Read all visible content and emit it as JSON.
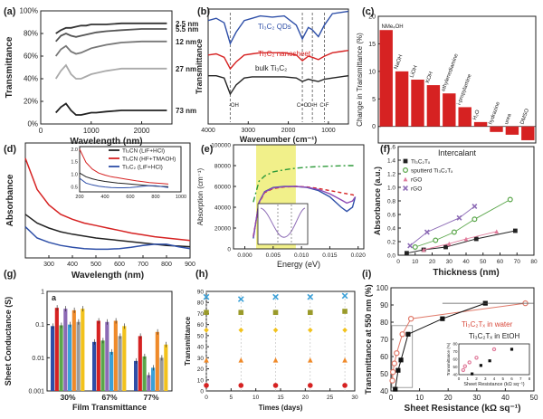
{
  "colors": {
    "black": "#1a1a1a",
    "red": "#d62222",
    "blue": "#2e4fa8",
    "green": "#5aa64a",
    "pink": "#e07a9a",
    "purple": "#8c6ab5",
    "orange": "#ef8a2a",
    "yellow": "#f2c21c",
    "sky": "#3aa0d8",
    "olive": "#9a9a2a",
    "highlight": "#f1f08a"
  },
  "panels": {
    "a": {
      "letter": "(a)"
    },
    "b": {
      "letter": "(b)"
    },
    "c": {
      "letter": "(c)"
    },
    "d": {
      "letter": "(d)"
    },
    "e": {
      "letter": "(e)"
    },
    "f": {
      "letter": "(f)"
    },
    "g": {
      "letter": "(g)",
      "inner": "a"
    },
    "h": {
      "letter": "(h)"
    },
    "i": {
      "letter": "(i)"
    }
  },
  "chart_data": [
    {
      "id": "a",
      "type": "line",
      "xlabel": "Wavelength (nm)",
      "ylabel": "Transmittance",
      "x_ticks": [
        "0",
        "1000",
        "2000"
      ],
      "y_ticks": [
        "0%",
        "20%",
        "40%",
        "60%",
        "80%",
        "100%"
      ],
      "xlim": [
        0,
        2600
      ],
      "ylim": [
        0,
        100
      ],
      "x": [
        300,
        400,
        500,
        600,
        700,
        800,
        900,
        1000,
        1100,
        1300,
        1600,
        2000,
        2500
      ],
      "series": [
        {
          "name": "2.5 nm",
          "color": "#333333",
          "values": [
            80,
            83,
            85,
            85,
            86,
            87,
            87,
            88,
            88,
            88,
            89,
            89,
            89
          ]
        },
        {
          "name": "5.5 nm",
          "color": "#555555",
          "values": [
            73,
            78,
            80,
            78,
            77,
            78,
            79,
            80,
            81,
            82,
            83,
            84,
            84
          ]
        },
        {
          "name": "12 nm",
          "color": "#777777",
          "values": [
            60,
            66,
            69,
            64,
            62,
            63,
            65,
            67,
            68,
            70,
            72,
            73,
            73
          ]
        },
        {
          "name": "27 nm",
          "color": "#aaaaaa",
          "values": [
            40,
            47,
            52,
            44,
            40,
            40,
            42,
            44,
            45,
            47,
            49,
            49,
            49
          ]
        },
        {
          "name": "73 nm",
          "color": "#222222",
          "values": [
            10,
            15,
            18,
            12,
            8,
            8,
            9,
            10,
            10,
            11,
            12,
            12,
            12
          ]
        }
      ]
    },
    {
      "id": "b",
      "type": "line",
      "xlabel": "Wavenumber (cm⁻¹)",
      "ylabel": "Transmittance",
      "x_ticks": [
        "4000",
        "3000",
        "2000",
        "1000"
      ],
      "xlim": [
        4000,
        500
      ],
      "ylim": [
        0,
        1
      ],
      "x": [
        4000,
        3800,
        3600,
        3450,
        3300,
        3100,
        2900,
        2700,
        2400,
        2100,
        1800,
        1650,
        1500,
        1400,
        1250,
        1100,
        900,
        700,
        500
      ],
      "annotations": [
        "-OH",
        "C=O",
        "O-H",
        "C-F"
      ],
      "series": [
        {
          "name": "Ti₃C₂ QDs",
          "color": "#2e4fa8",
          "values": [
            0.9,
            0.92,
            0.88,
            0.7,
            0.8,
            0.9,
            0.92,
            0.94,
            0.93,
            0.94,
            0.86,
            0.74,
            0.84,
            0.82,
            0.76,
            0.86,
            0.96,
            0.97,
            0.98
          ]
        },
        {
          "name": "Ti₃C₂ nanosheet",
          "color": "#d62222",
          "values": [
            0.6,
            0.61,
            0.58,
            0.48,
            0.54,
            0.6,
            0.61,
            0.62,
            0.62,
            0.62,
            0.6,
            0.55,
            0.59,
            0.58,
            0.56,
            0.59,
            0.62,
            0.63,
            0.64
          ]
        },
        {
          "name": "bulk Ti₃C₂",
          "color": "#222222",
          "values": [
            0.42,
            0.42,
            0.4,
            0.26,
            0.34,
            0.4,
            0.41,
            0.41,
            0.41,
            0.41,
            0.4,
            0.37,
            0.39,
            0.38,
            0.37,
            0.39,
            0.4,
            0.41,
            0.42
          ]
        }
      ]
    },
    {
      "id": "c",
      "type": "bar",
      "xlabel": "Intercalant",
      "ylabel": "Change in Transmittance (%)",
      "y_ticks": [
        "0",
        "5",
        "10",
        "15",
        "20"
      ],
      "ylim": [
        -3,
        20
      ],
      "categories": [
        "NMe₄OH",
        "NaOH",
        "LiOH",
        "KOH",
        "ethylenediamine",
        "i-propylamine",
        "H₂O",
        "hydrazine",
        "urea",
        "DMSO"
      ],
      "values": [
        17.5,
        10,
        8.5,
        7.5,
        6,
        3.5,
        0.8,
        -1,
        -1.5,
        -2.5
      ],
      "color": "#d62222"
    },
    {
      "id": "d",
      "type": "line",
      "xlabel": "Wavelength (nm)",
      "ylabel": "Absorbance",
      "x_ticks": [
        "300",
        "400",
        "500",
        "600",
        "700",
        "800",
        "900"
      ],
      "xlim": [
        200,
        900
      ],
      "x": [
        200,
        250,
        300,
        350,
        400,
        450,
        500,
        550,
        600,
        650,
        700,
        750,
        800,
        850,
        900
      ],
      "series": [
        {
          "name": "Ti₃CN (LiF+HCl)",
          "color": "#222222",
          "values": [
            1.0,
            0.86,
            0.78,
            0.72,
            0.68,
            0.65,
            0.62,
            0.6,
            0.58,
            0.56,
            0.54,
            0.52,
            0.5,
            0.49,
            0.48
          ]
        },
        {
          "name": "Ti₃CN (HF+TMAOH)",
          "color": "#d62222",
          "values": [
            1.9,
            1.4,
            1.15,
            1.0,
            0.92,
            0.86,
            0.82,
            0.78,
            0.74,
            0.7,
            0.67,
            0.64,
            0.62,
            0.6,
            0.58
          ]
        },
        {
          "name": "Ti₃C₂ (LiF+HCl)",
          "color": "#2e4fa8",
          "values": [
            0.8,
            0.62,
            0.55,
            0.5,
            0.47,
            0.45,
            0.44,
            0.44,
            0.45,
            0.47,
            0.5,
            0.52,
            0.52,
            0.48,
            0.45
          ]
        }
      ],
      "inset": {
        "x_ticks": [
          "200",
          "400",
          "600",
          "800",
          "1000"
        ],
        "y_ticks": [
          "0.5",
          "1.0",
          "1.5",
          "2.0"
        ]
      }
    },
    {
      "id": "e",
      "type": "line",
      "xlabel": "Energy (eV)",
      "ylabel": "Absorption (cm⁻¹)",
      "x_ticks": [
        "0.000",
        "0.005",
        "0.010",
        "0.015",
        "0.020"
      ],
      "y_ticks": [
        "0",
        "20000",
        "40000",
        "60000",
        "80000",
        "100000"
      ],
      "xlim": [
        -0.002,
        0.021
      ],
      "ylim": [
        0,
        100000
      ],
      "highlight_range": [
        0.002,
        0.009
      ],
      "x": [
        0.0015,
        0.0025,
        0.0035,
        0.005,
        0.007,
        0.009,
        0.011,
        0.013,
        0.015,
        0.017,
        0.018,
        0.019,
        0.0195
      ],
      "series": [
        {
          "name": "",
          "color": "#2e9a3a",
          "dash": "6 3 2 3",
          "values": [
            45000,
            65000,
            70000,
            74000,
            76000,
            77500,
            78500,
            79000,
            79500,
            79800,
            80000,
            80000,
            80000
          ]
        },
        {
          "name": "",
          "color": "#2e4fa8",
          "values": [
            10000,
            45000,
            55000,
            59000,
            60000,
            60000,
            59000,
            56000,
            50000,
            40000,
            36000,
            40000,
            50000
          ]
        },
        {
          "name": "",
          "color": "#d62222",
          "dash": "4 3",
          "values": [
            12000,
            44000,
            54000,
            58000,
            59500,
            60000,
            59500,
            58000,
            56000,
            54000,
            53000,
            52000,
            51000
          ]
        },
        {
          "name": "",
          "color": "#8c4ab5",
          "values": [
            11000,
            44500,
            54500,
            58500,
            59700,
            60000,
            59200,
            57000,
            53000,
            47000,
            44000,
            46000,
            50000
          ]
        }
      ]
    },
    {
      "id": "f",
      "type": "scatter",
      "xlabel": "Thickness (nm)",
      "ylabel": "Absorbance (a.u.)",
      "x_ticks": [
        "0",
        "10",
        "20",
        "30",
        "40",
        "50",
        "60",
        "70",
        "80"
      ],
      "y_ticks": [
        "0.0",
        "0.2",
        "0.4",
        "0.6",
        "0.8",
        "1.0",
        "1.2",
        "1.4",
        "1.6"
      ],
      "xlim": [
        0,
        80
      ],
      "ylim": [
        0,
        1.6
      ],
      "series": [
        {
          "name": "Ti₃C₂Tₓ",
          "color": "#222222",
          "marker": "square",
          "points": [
            [
              5,
              0.03
            ],
            [
              15,
              0.08
            ],
            [
              28,
              0.12
            ],
            [
              46,
              0.24
            ],
            [
              69,
              0.36
            ]
          ]
        },
        {
          "name": "sputterd Ti₃C₂Tₓ",
          "color": "#5aa64a",
          "marker": "circle",
          "points": [
            [
              10,
              0.12
            ],
            [
              22,
              0.22
            ],
            [
              33,
              0.34
            ],
            [
              45,
              0.53
            ],
            [
              66,
              0.82
            ]
          ]
        },
        {
          "name": "rGO",
          "color": "#e07a9a",
          "marker": "triangle",
          "points": [
            [
              15,
              0.08
            ],
            [
              30,
              0.17
            ],
            [
              40,
              0.24
            ],
            [
              58,
              0.35
            ]
          ]
        },
        {
          "name": "rGO",
          "color": "#8c6ab5",
          "marker": "cross",
          "points": [
            [
              7,
              0.14
            ],
            [
              17,
              0.34
            ],
            [
              36,
              0.55
            ],
            [
              45,
              0.72
            ]
          ]
        }
      ]
    },
    {
      "id": "g",
      "type": "bar",
      "xlabel": "Film Transmittance",
      "ylabel": "Sheet Conductance (S)",
      "y_ticks": [
        "0.001",
        "0.01",
        "0.1",
        "1"
      ],
      "ylim_log": [
        0.001,
        1
      ],
      "categories": [
        "30%",
        "67%",
        "77%"
      ],
      "series": [
        {
          "name": "",
          "color": "#2e4fa8",
          "values": [
            0.09,
            0.03,
            0.008
          ]
        },
        {
          "name": "",
          "color": "#d62222",
          "values": [
            0.32,
            0.13,
            0.045
          ]
        },
        {
          "name": "",
          "color": "#5aa64a",
          "values": [
            0.095,
            0.033,
            0.011
          ]
        },
        {
          "name": "",
          "color": "#8c6ab5",
          "values": [
            0.3,
            0.12,
            0.003
          ]
        },
        {
          "name": "",
          "color": "#3aa0d8",
          "values": [
            0.1,
            0.015,
            0.005
          ]
        },
        {
          "name": "",
          "color": "#ef8a2a",
          "values": [
            0.27,
            0.13,
            0.06
          ]
        },
        {
          "name": "",
          "color": "#9a9a9a",
          "values": [
            0.12,
            0.045,
            0.01
          ]
        },
        {
          "name": "",
          "color": "#f2c21c",
          "values": [
            0.3,
            0.09,
            0.025
          ]
        }
      ]
    },
    {
      "id": "h",
      "type": "scatter",
      "xlabel": "Times (days)",
      "ylabel": "Transmittance",
      "x_ticks": [
        "0",
        "5",
        "10",
        "15",
        "20",
        "25",
        "30"
      ],
      "y_ticks": [
        "0",
        "10",
        "20",
        "30",
        "40",
        "50",
        "60",
        "70",
        "80",
        "90"
      ],
      "xlim": [
        0,
        30
      ],
      "ylim": [
        0,
        90
      ],
      "x": [
        0,
        7,
        14,
        21,
        28
      ],
      "series": [
        {
          "name": "",
          "color": "#3aa0d8",
          "marker": "cross",
          "values": [
            85,
            83,
            85,
            85,
            86
          ]
        },
        {
          "name": "",
          "color": "#9a9a2a",
          "marker": "square",
          "values": [
            71,
            71,
            71,
            71,
            72
          ]
        },
        {
          "name": "",
          "color": "#f2c21c",
          "marker": "diamond",
          "values": [
            55,
            55,
            55,
            55,
            55
          ]
        },
        {
          "name": "",
          "color": "#ef8a2a",
          "marker": "triangle",
          "values": [
            28,
            28,
            28,
            28,
            28
          ]
        },
        {
          "name": "",
          "color": "#d62222",
          "marker": "circle",
          "values": [
            5,
            5,
            5,
            5,
            5
          ]
        }
      ]
    },
    {
      "id": "i",
      "type": "scatter",
      "xlabel": "Sheet Resistance (kΩ sq⁻¹)",
      "ylabel": "Transmittance at 550 nm (%)",
      "x_ticks": [
        "0",
        "10",
        "20",
        "30",
        "40",
        "50"
      ],
      "y_ticks": [
        "40",
        "50",
        "60",
        "70",
        "80",
        "90",
        "100"
      ],
      "xlim": [
        0,
        50
      ],
      "ylim": [
        40,
        100
      ],
      "series": [
        {
          "name": "Ti₃C₂Tₓ in water",
          "color": "#e07a6a",
          "marker": "circle-open",
          "points": [
            [
              0.5,
              46
            ],
            [
              0.7,
              51
            ],
            [
              1.2,
              56
            ],
            [
              2.0,
              62
            ],
            [
              4.0,
              73
            ],
            [
              7.0,
              82
            ],
            [
              47.0,
              91
            ]
          ]
        },
        {
          "name": "Ti₃C₂Tₓ in EtOH",
          "color": "#111111",
          "marker": "square",
          "points": [
            [
              1.5,
              41
            ],
            [
              2.5,
              52
            ],
            [
              3.5,
              58
            ],
            [
              6.0,
              73
            ],
            [
              18.0,
              82
            ],
            [
              33.0,
              91
            ]
          ]
        }
      ],
      "inset": {
        "xlabel": "Sheet Resistance (kΩ sq⁻¹)",
        "ylabel": "Transmittance (%)",
        "x_ticks": [
          "0",
          "1",
          "2",
          "3",
          "4",
          "5",
          "6",
          "7",
          "8"
        ],
        "y_ticks": [
          "40",
          "50",
          "60",
          "70",
          "80"
        ]
      }
    }
  ]
}
